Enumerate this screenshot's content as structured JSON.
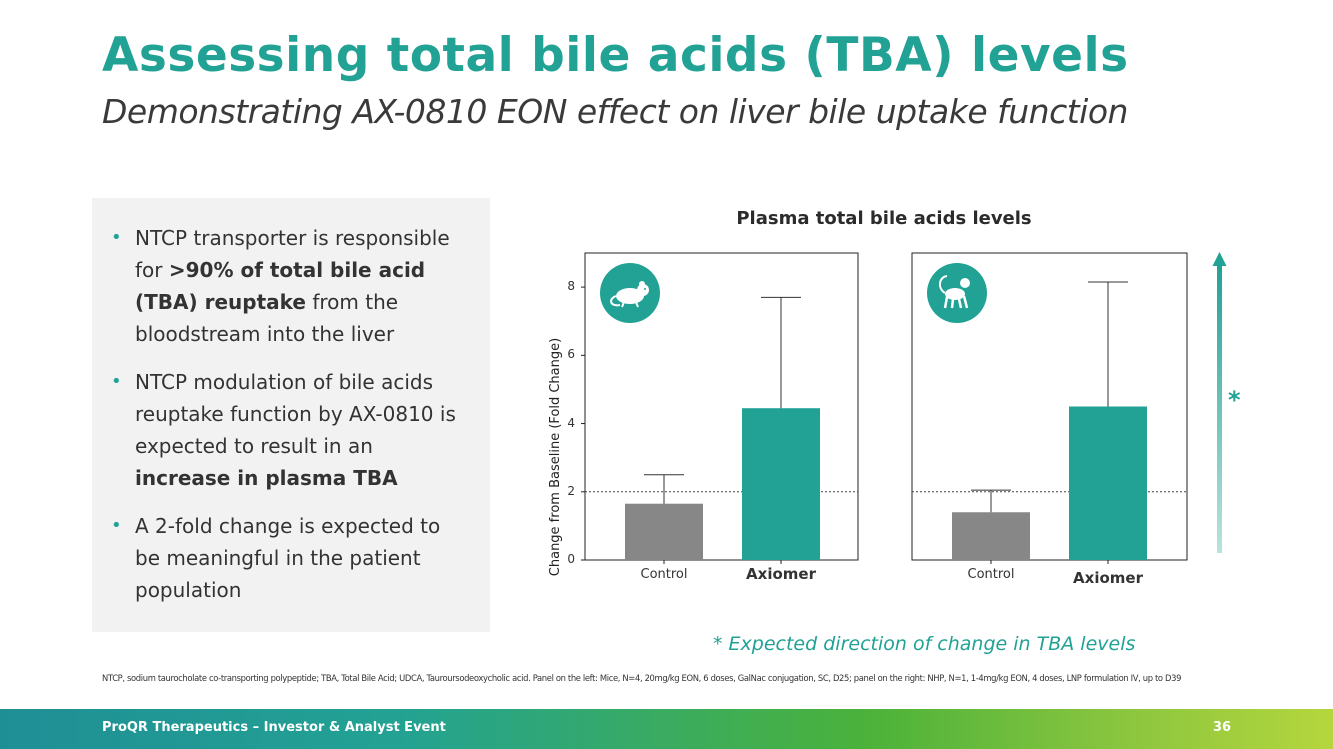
{
  "title": "Assessing total bile acids (TBA) levels",
  "subtitle": "Demonstrating AX-0810 EON effect on liver bile uptake function",
  "bullets": [
    {
      "parts": [
        {
          "text": "NTCP transporter is responsible for ",
          "bold": false
        },
        {
          "text": ">90% of total bile acid (TBA) reuptake",
          "bold": true
        },
        {
          "text": " from the bloodstream into the liver",
          "bold": false
        }
      ]
    },
    {
      "parts": [
        {
          "text": "NTCP modulation of bile acids reuptake function by AX-0810 is expected to result in an ",
          "bold": false
        },
        {
          "text": "increase in plasma TBA",
          "bold": true
        }
      ]
    },
    {
      "parts": [
        {
          "text": "A 2-fold change is expected to be meaningful in the patient population",
          "bold": false
        }
      ]
    }
  ],
  "chart_data": {
    "type": "bar",
    "title": "Plasma total bile acids levels",
    "ylabel": "Change from Baseline (Fold  Change)",
    "ylim": [
      0,
      9
    ],
    "yticks": [
      0,
      2,
      4,
      6,
      8
    ],
    "reference_line": 2,
    "panels": [
      {
        "subject": "mouse",
        "icon": "mouse-icon",
        "categories": [
          "Control",
          "Axiomer"
        ],
        "values": [
          1.65,
          4.45
        ],
        "error_upper": [
          2.5,
          7.7
        ],
        "colors": [
          "#878787",
          "#21a295"
        ]
      },
      {
        "subject": "nhp",
        "icon": "monkey-icon",
        "categories": [
          "Control",
          "Axiomer"
        ],
        "values": [
          1.4,
          4.5
        ],
        "error_upper": [
          2.05,
          8.15
        ],
        "colors": [
          "#878787",
          "#21a295"
        ]
      }
    ],
    "direction_marker": "*",
    "annotation": "* Expected direction of change in TBA levels"
  },
  "footnote": "NTCP, sodium taurocholate co-transporting polypeptide; TBA, Total Bile Acid; UDCA, Tauroursodeoxycholic acid. Panel on the left: Mice, N=4, 20mg/kg EON, 6 doses, GalNac conjugation, SC, D25; panel on the right:  NHP, N=1, 1-4mg/kg EON, 4 doses,  LNP formulation IV, up to D39",
  "footer": {
    "company": "ProQR Therapeutics – Investor & Analyst Event",
    "page_number": "36"
  },
  "colors": {
    "accent": "#21a295",
    "control": "#878787",
    "text": "#333333"
  }
}
